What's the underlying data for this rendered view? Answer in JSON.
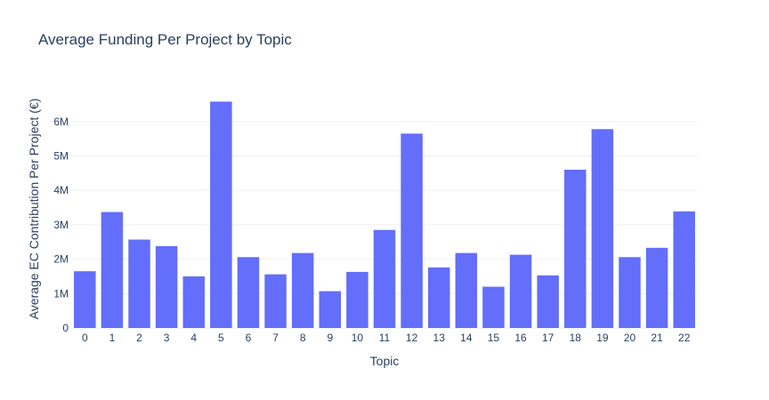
{
  "chart_data": {
    "type": "bar",
    "title": "Average Funding Per Project by Topic",
    "xlabel": "Topic",
    "ylabel": "Average EC Contribution Per Project (€)",
    "categories": [
      "0",
      "1",
      "2",
      "3",
      "4",
      "5",
      "6",
      "7",
      "8",
      "9",
      "10",
      "11",
      "12",
      "13",
      "14",
      "15",
      "16",
      "17",
      "18",
      "19",
      "20",
      "21",
      "22"
    ],
    "values": [
      1650000,
      3370000,
      2570000,
      2380000,
      1500000,
      6580000,
      2060000,
      1560000,
      2180000,
      1070000,
      1630000,
      2850000,
      5650000,
      1760000,
      2180000,
      1200000,
      2130000,
      1530000,
      4600000,
      5780000,
      2060000,
      2330000,
      3390000
    ],
    "ylim": [
      0,
      6950000
    ],
    "yticks": [
      0,
      1000000,
      2000000,
      3000000,
      4000000,
      5000000,
      6000000
    ],
    "ytick_labels": [
      "0",
      "1M",
      "2M",
      "3M",
      "4M",
      "5M",
      "6M"
    ],
    "bar_color": "#636efa",
    "grid": true,
    "legend": "none"
  }
}
